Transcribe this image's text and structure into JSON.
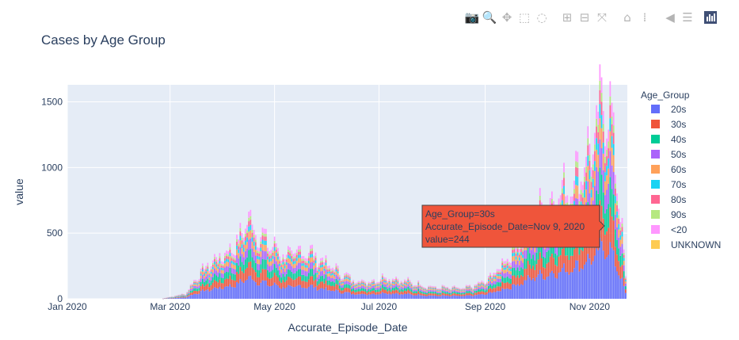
{
  "modebar": {
    "buttons": [
      {
        "name": "camera-icon",
        "glyph": "📷"
      },
      {
        "name": "zoom-icon",
        "glyph": "🔍"
      },
      {
        "name": "pan-icon",
        "glyph": "✥"
      },
      {
        "name": "box-select-icon",
        "glyph": "⬚"
      },
      {
        "name": "lasso-select-icon",
        "glyph": "◌"
      },
      {
        "name": "zoom-in-icon",
        "glyph": "⊞"
      },
      {
        "name": "zoom-out-icon",
        "glyph": "⊟"
      },
      {
        "name": "autoscale-icon",
        "glyph": "⤧"
      },
      {
        "name": "reset-axes-icon",
        "glyph": "⌂"
      },
      {
        "name": "spike-lines-icon",
        "glyph": "⁞"
      },
      {
        "name": "hover-closest-icon",
        "glyph": "◀"
      },
      {
        "name": "hover-compare-icon",
        "glyph": "☰"
      }
    ]
  },
  "tooltip": {
    "lines": [
      "Age_Group=30s",
      "Accurate_Episode_Date=Nov 9, 2020",
      "value=244"
    ],
    "color": "#EF553B"
  },
  "chart_data": {
    "type": "bar",
    "barmode": "stack",
    "title": "Cases by Age Group",
    "xlabel": "Accurate_Episode_Date",
    "ylabel": "value",
    "x_range": [
      "2020-01-01",
      "2020-11-23"
    ],
    "ylim": [
      0,
      1630
    ],
    "x_ticks": [
      "Jan 2020",
      "Mar 2020",
      "May 2020",
      "Jul 2020",
      "Sep 2020",
      "Nov 2020"
    ],
    "y_ticks": [
      0,
      500,
      1000,
      1500
    ],
    "legend_title": "Age_Group",
    "legend_position": "right",
    "series_order": [
      "20s",
      "30s",
      "40s",
      "50s",
      "60s",
      "70s",
      "80s",
      "90s",
      "<20",
      "UNKNOWN"
    ],
    "colors": [
      "#636EFA",
      "#EF553B",
      "#00CC96",
      "#AB63FA",
      "#FFA15A",
      "#19D3F3",
      "#FF6692",
      "#B6E880",
      "#FF97FF",
      "#FECB52"
    ],
    "shares": [
      0.26,
      0.16,
      0.14,
      0.12,
      0.09,
      0.06,
      0.06,
      0.04,
      0.07,
      0.0
    ],
    "daily_total_anchors": [
      {
        "date": "2020-01-01",
        "value": 0
      },
      {
        "date": "2020-02-25",
        "value": 0
      },
      {
        "date": "2020-03-10",
        "value": 40
      },
      {
        "date": "2020-03-18",
        "value": 190
      },
      {
        "date": "2020-03-25",
        "value": 280
      },
      {
        "date": "2020-04-05",
        "value": 370
      },
      {
        "date": "2020-04-12",
        "value": 480
      },
      {
        "date": "2020-04-15",
        "value": 640
      },
      {
        "date": "2020-04-20",
        "value": 520
      },
      {
        "date": "2020-04-28",
        "value": 420
      },
      {
        "date": "2020-05-08",
        "value": 330
      },
      {
        "date": "2020-05-20",
        "value": 370
      },
      {
        "date": "2020-05-27",
        "value": 310
      },
      {
        "date": "2020-06-05",
        "value": 230
      },
      {
        "date": "2020-06-15",
        "value": 150
      },
      {
        "date": "2020-06-25",
        "value": 130
      },
      {
        "date": "2020-07-05",
        "value": 170
      },
      {
        "date": "2020-07-15",
        "value": 140
      },
      {
        "date": "2020-08-01",
        "value": 90
      },
      {
        "date": "2020-08-20",
        "value": 80
      },
      {
        "date": "2020-09-01",
        "value": 130
      },
      {
        "date": "2020-09-10",
        "value": 250
      },
      {
        "date": "2020-09-20",
        "value": 420
      },
      {
        "date": "2020-10-01",
        "value": 660
      },
      {
        "date": "2020-10-10",
        "value": 730
      },
      {
        "date": "2020-10-20",
        "value": 870
      },
      {
        "date": "2020-10-27",
        "value": 1000
      },
      {
        "date": "2020-11-02",
        "value": 1150
      },
      {
        "date": "2020-11-06",
        "value": 1350
      },
      {
        "date": "2020-11-09",
        "value": 1530
      },
      {
        "date": "2020-11-13",
        "value": 1420
      },
      {
        "date": "2020-11-17",
        "value": 950
      },
      {
        "date": "2020-11-20",
        "value": 500
      },
      {
        "date": "2020-11-22",
        "value": 150
      }
    ],
    "highlight_point": {
      "series": "30s",
      "date": "2020-11-09",
      "value": 244
    }
  }
}
